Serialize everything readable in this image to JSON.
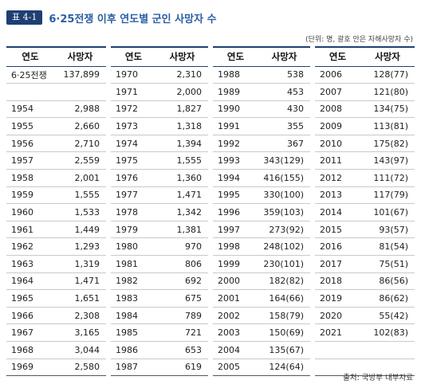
{
  "header": {
    "tag": "표 4-1",
    "title": "6·25전쟁 이후 연도별 군인 사망자 수"
  },
  "unit_note": "(단위: 명, 괄호 안은 자해사망자 수)",
  "columns": [
    {
      "year": "연도",
      "value": "사망자"
    },
    {
      "year": "연도",
      "value": "사망자"
    },
    {
      "year": "연도",
      "value": "사망자"
    },
    {
      "year": "연도",
      "value": "사망자"
    }
  ],
  "rows": [
    [
      [
        "6·25전쟁",
        "137,899"
      ],
      [
        "1970",
        "2,310"
      ],
      [
        "1988",
        "538"
      ],
      [
        "2006",
        "128(77)"
      ]
    ],
    [
      [
        "",
        ""
      ],
      [
        "1971",
        "2,000"
      ],
      [
        "1989",
        "453"
      ],
      [
        "2007",
        "121(80)"
      ]
    ],
    [
      [
        "1954",
        "2,988"
      ],
      [
        "1972",
        "1,827"
      ],
      [
        "1990",
        "430"
      ],
      [
        "2008",
        "134(75)"
      ]
    ],
    [
      [
        "1955",
        "2,660"
      ],
      [
        "1973",
        "1,318"
      ],
      [
        "1991",
        "355"
      ],
      [
        "2009",
        "113(81)"
      ]
    ],
    [
      [
        "1956",
        "2,710"
      ],
      [
        "1974",
        "1,394"
      ],
      [
        "1992",
        "367"
      ],
      [
        "2010",
        "175(82)"
      ]
    ],
    [
      [
        "1957",
        "2,559"
      ],
      [
        "1975",
        "1,555"
      ],
      [
        "1993",
        "343(129)"
      ],
      [
        "2011",
        "143(97)"
      ]
    ],
    [
      [
        "1958",
        "2,001"
      ],
      [
        "1976",
        "1,360"
      ],
      [
        "1994",
        "416(155)"
      ],
      [
        "2012",
        "111(72)"
      ]
    ],
    [
      [
        "1959",
        "1,555"
      ],
      [
        "1977",
        "1,471"
      ],
      [
        "1995",
        "330(100)"
      ],
      [
        "2013",
        "117(79)"
      ]
    ],
    [
      [
        "1960",
        "1,533"
      ],
      [
        "1978",
        "1,342"
      ],
      [
        "1996",
        "359(103)"
      ],
      [
        "2014",
        "101(67)"
      ]
    ],
    [
      [
        "1961",
        "1,449"
      ],
      [
        "1979",
        "1,381"
      ],
      [
        "1997",
        "273(92)"
      ],
      [
        "2015",
        "93(57)"
      ]
    ],
    [
      [
        "1962",
        "1,293"
      ],
      [
        "1980",
        "970"
      ],
      [
        "1998",
        "248(102)"
      ],
      [
        "2016",
        "81(54)"
      ]
    ],
    [
      [
        "1963",
        "1,319"
      ],
      [
        "1981",
        "806"
      ],
      [
        "1999",
        "230(101)"
      ],
      [
        "2017",
        "75(51)"
      ]
    ],
    [
      [
        "1964",
        "1,471"
      ],
      [
        "1982",
        "692"
      ],
      [
        "2000",
        "182(82)"
      ],
      [
        "2018",
        "86(56)"
      ]
    ],
    [
      [
        "1965",
        "1,651"
      ],
      [
        "1983",
        "675"
      ],
      [
        "2001",
        "164(66)"
      ],
      [
        "2019",
        "86(62)"
      ]
    ],
    [
      [
        "1966",
        "2,308"
      ],
      [
        "1984",
        "789"
      ],
      [
        "2002",
        "158(79)"
      ],
      [
        "2020",
        "55(42)"
      ]
    ],
    [
      [
        "1967",
        "3,165"
      ],
      [
        "1985",
        "721"
      ],
      [
        "2003",
        "150(69)"
      ],
      [
        "2021",
        "102(83)"
      ]
    ],
    [
      [
        "1968",
        "3,044"
      ],
      [
        "1986",
        "653"
      ],
      [
        "2004",
        "135(67)"
      ],
      [
        "",
        ""
      ]
    ],
    [
      [
        "1969",
        "2,580"
      ],
      [
        "1987",
        "619"
      ],
      [
        "2005",
        "124(64)"
      ],
      [
        "",
        ""
      ]
    ]
  ],
  "source": "출처: 국방부 내부자료",
  "colors": {
    "accent": "#1f3f73",
    "title": "#2b5ea3"
  }
}
